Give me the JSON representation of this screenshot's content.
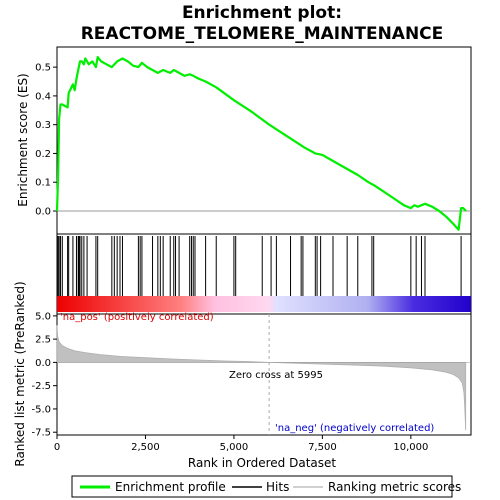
{
  "chart_data": {
    "type": "line",
    "title_line1": "Enrichment plot:",
    "title_line2": "REACTOME_TELOMERE_MAINTENANCE",
    "es_panel": {
      "ylabel": "Enrichment score (ES)",
      "ylim": [
        -0.08,
        0.57
      ],
      "yticks": [
        0.0,
        0.1,
        0.2,
        0.3,
        0.4,
        0.5
      ],
      "ytick_labels": [
        "0.0",
        "0.1",
        "0.2",
        "0.3",
        "0.4",
        "0.5"
      ],
      "series": [
        {
          "name": "Enrichment profile",
          "color": "#00ee00",
          "x": [
            0,
            30,
            60,
            100,
            150,
            300,
            330,
            450,
            500,
            550,
            600,
            650,
            700,
            760,
            800,
            850,
            900,
            1000,
            1100,
            1150,
            1250,
            1400,
            1550,
            1700,
            1850,
            2000,
            2150,
            2300,
            2400,
            2550,
            2700,
            2850,
            3000,
            3100,
            3200,
            3300,
            3450,
            3600,
            3750,
            3850,
            4000,
            4200,
            4500,
            5000,
            5500,
            6000,
            6500,
            7000,
            7300,
            7500,
            8000,
            8500,
            8800,
            8950,
            9200,
            9500,
            9800,
            10000,
            10100,
            10200,
            10300,
            10400,
            10600,
            10800,
            11000,
            11200,
            11350,
            11420,
            11480,
            11560
          ],
          "y": [
            0.0,
            0.12,
            0.32,
            0.37,
            0.37,
            0.36,
            0.41,
            0.44,
            0.42,
            0.46,
            0.49,
            0.52,
            0.52,
            0.51,
            0.53,
            0.52,
            0.51,
            0.52,
            0.5,
            0.535,
            0.52,
            0.51,
            0.5,
            0.52,
            0.53,
            0.52,
            0.505,
            0.5,
            0.515,
            0.5,
            0.49,
            0.48,
            0.49,
            0.485,
            0.48,
            0.49,
            0.48,
            0.47,
            0.475,
            0.47,
            0.46,
            0.45,
            0.43,
            0.385,
            0.345,
            0.3,
            0.26,
            0.22,
            0.2,
            0.195,
            0.16,
            0.125,
            0.1,
            0.09,
            0.07,
            0.045,
            0.02,
            0.01,
            0.02,
            0.015,
            0.02,
            0.025,
            0.015,
            0.0,
            -0.02,
            -0.045,
            -0.065,
            0.01,
            0.01,
            0.0
          ]
        }
      ]
    },
    "hits_panel": {
      "hit_positions": [
        30,
        60,
        100,
        150,
        300,
        330,
        450,
        550,
        600,
        620,
        650,
        700,
        760,
        850,
        1100,
        1150,
        1550,
        1620,
        1700,
        1780,
        1850,
        2300,
        2350,
        2400,
        2700,
        2850,
        2920,
        3000,
        3200,
        3300,
        3350,
        3450,
        3750,
        3800,
        3850,
        3900,
        4200,
        4500,
        5000,
        5050,
        5800,
        6050,
        6200,
        6600,
        6900,
        6950,
        7300,
        7350,
        7450,
        7800,
        8200,
        8500,
        8900,
        8950,
        10000,
        10150,
        10300,
        10400,
        11420
      ],
      "gradient_colors": [
        "#ee0000",
        "#ff9999",
        "#ffe0f0",
        "#e8e8ff",
        "#aaaaee",
        "#2200cc"
      ]
    },
    "metric_panel": {
      "ylabel": "Ranked list metric (PreRanked)",
      "ylim": [
        -7.8,
        5.2
      ],
      "yticks": [
        5.0,
        2.5,
        0.0,
        -2.5,
        -5.0,
        -7.5
      ],
      "ytick_labels": [
        "5.0",
        "2.5",
        "0.0",
        "-2.5",
        "-5.0",
        "-7.5"
      ],
      "pos_label": "'na_pos' (positively correlated)",
      "neg_label": "'na_neg' (negatively correlated)",
      "zero_cross_label": "Zero cross at 5995",
      "zero_cross": 5995,
      "profile_x": [
        0,
        20,
        60,
        150,
        300,
        500,
        800,
        1200,
        1800,
        2500,
        3200,
        4000,
        4800,
        5500,
        5995,
        6500,
        7500,
        8500,
        9300,
        10000,
        10600,
        11000,
        11200,
        11350,
        11450,
        11500,
        11520,
        11550
      ],
      "profile_y": [
        4.0,
        2.8,
        2.2,
        1.8,
        1.5,
        1.25,
        1.05,
        0.85,
        0.65,
        0.5,
        0.38,
        0.26,
        0.15,
        0.07,
        0.0,
        -0.06,
        -0.18,
        -0.3,
        -0.42,
        -0.58,
        -0.8,
        -1.05,
        -1.3,
        -1.65,
        -2.2,
        -3.2,
        -4.5,
        -7.3
      ]
    },
    "xaxis": {
      "xlabel": "Rank in Ordered Dataset",
      "xlim": [
        0,
        11700
      ],
      "xticks": [
        0,
        2500,
        5000,
        7500,
        10000
      ],
      "xtick_labels": [
        "0",
        "2,500",
        "5,000",
        "7,500",
        "10,000"
      ]
    },
    "legend": {
      "position": "bottom",
      "entries": [
        {
          "label": "Enrichment profile",
          "color": "#00ee00"
        },
        {
          "label": "Hits",
          "color": "#000000"
        },
        {
          "label": "Ranking metric scores",
          "color": "#c0c0c0"
        }
      ]
    }
  }
}
